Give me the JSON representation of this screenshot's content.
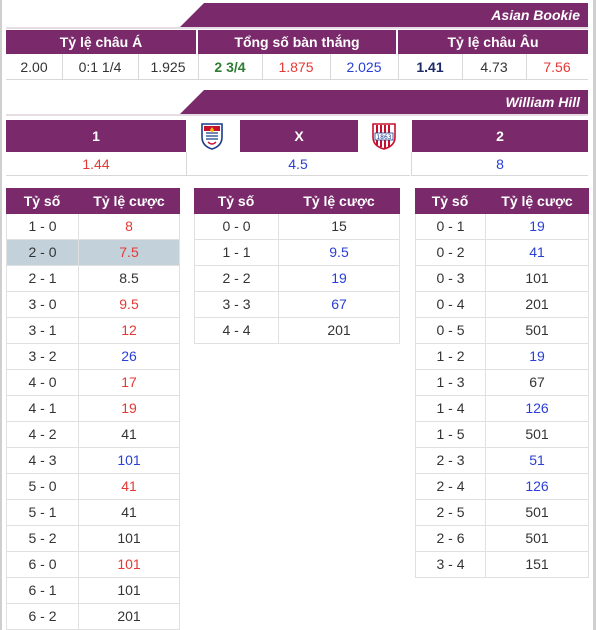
{
  "asian": {
    "bookie": "Asian Bookie",
    "headers": [
      "Tỷ lệ châu Á",
      "Tổng số bàn thắng",
      "Tỷ lệ châu Âu"
    ],
    "values": [
      "2.00",
      "0:1 1/4",
      "1.925",
      "2 3/4",
      "1.875",
      "2.025",
      "1.41",
      "4.73",
      "7.56"
    ]
  },
  "wh": {
    "bookie": "William Hill",
    "headers": [
      "1",
      "X",
      "2"
    ],
    "home_logo": "crystal-palace-crest-icon",
    "away_logo": "stoke-city-crest-icon",
    "away_logo_text": "1863",
    "values": [
      "1.44",
      "4.5",
      "8"
    ]
  },
  "score_header": {
    "score": "Tỷ số",
    "odds": "Tỷ lệ cược"
  },
  "colors": {
    "accent": "#7a2a6a",
    "red": "#e53935",
    "blue": "#2a3fd6",
    "highlight": "#c3d1da"
  },
  "home_scores": [
    {
      "s": "1 - 0",
      "o": "8",
      "c": "red"
    },
    {
      "s": "2 - 0",
      "o": "7.5",
      "c": "red",
      "hl": true
    },
    {
      "s": "2 - 1",
      "o": "8.5",
      "c": "dark"
    },
    {
      "s": "3 - 0",
      "o": "9.5",
      "c": "red"
    },
    {
      "s": "3 - 1",
      "o": "12",
      "c": "red"
    },
    {
      "s": "3 - 2",
      "o": "26",
      "c": "blue"
    },
    {
      "s": "4 - 0",
      "o": "17",
      "c": "red"
    },
    {
      "s": "4 - 1",
      "o": "19",
      "c": "red"
    },
    {
      "s": "4 - 2",
      "o": "41",
      "c": "dark"
    },
    {
      "s": "4 - 3",
      "o": "101",
      "c": "blue"
    },
    {
      "s": "5 - 0",
      "o": "41",
      "c": "red"
    },
    {
      "s": "5 - 1",
      "o": "41",
      "c": "dark"
    },
    {
      "s": "5 - 2",
      "o": "101",
      "c": "dark"
    },
    {
      "s": "6 - 0",
      "o": "101",
      "c": "red"
    },
    {
      "s": "6 - 1",
      "o": "101",
      "c": "dark"
    },
    {
      "s": "6 - 2",
      "o": "201",
      "c": "dark"
    }
  ],
  "draw_scores": [
    {
      "s": "0 - 0",
      "o": "15",
      "c": "dark"
    },
    {
      "s": "1 - 1",
      "o": "9.5",
      "c": "blue"
    },
    {
      "s": "2 - 2",
      "o": "19",
      "c": "blue"
    },
    {
      "s": "3 - 3",
      "o": "67",
      "c": "blue"
    },
    {
      "s": "4 - 4",
      "o": "201",
      "c": "dark"
    }
  ],
  "away_scores": [
    {
      "s": "0 - 1",
      "o": "19",
      "c": "blue"
    },
    {
      "s": "0 - 2",
      "o": "41",
      "c": "blue"
    },
    {
      "s": "0 - 3",
      "o": "101",
      "c": "dark"
    },
    {
      "s": "0 - 4",
      "o": "201",
      "c": "dark"
    },
    {
      "s": "0 - 5",
      "o": "501",
      "c": "dark"
    },
    {
      "s": "1 - 2",
      "o": "19",
      "c": "blue"
    },
    {
      "s": "1 - 3",
      "o": "67",
      "c": "dark"
    },
    {
      "s": "1 - 4",
      "o": "126",
      "c": "blue"
    },
    {
      "s": "1 - 5",
      "o": "501",
      "c": "dark"
    },
    {
      "s": "2 - 3",
      "o": "51",
      "c": "blue"
    },
    {
      "s": "2 - 4",
      "o": "126",
      "c": "blue"
    },
    {
      "s": "2 - 5",
      "o": "501",
      "c": "dark"
    },
    {
      "s": "2 - 6",
      "o": "501",
      "c": "dark"
    },
    {
      "s": "3 - 4",
      "o": "151",
      "c": "dark"
    }
  ]
}
